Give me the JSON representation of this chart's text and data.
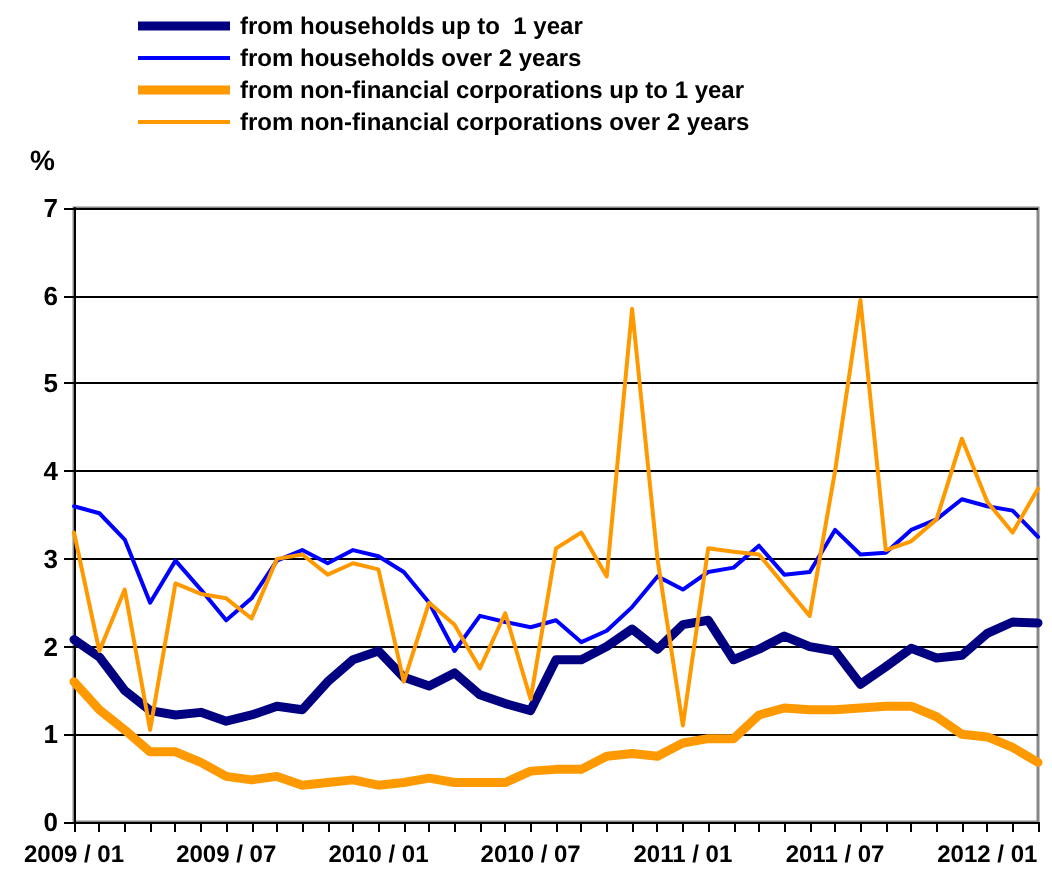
{
  "chart_data": {
    "type": "line",
    "ylabel": "%",
    "categories": [
      "2009 / 01",
      null,
      null,
      null,
      null,
      null,
      "2009 / 07",
      null,
      null,
      null,
      null,
      null,
      "2010 / 01",
      null,
      null,
      null,
      null,
      null,
      "2010 / 07",
      null,
      null,
      null,
      null,
      null,
      "2011 / 01",
      null,
      null,
      null,
      null,
      null,
      "2011 / 07",
      null,
      null,
      null,
      null,
      null,
      "2012 / 01",
      null,
      null
    ],
    "series": [
      {
        "name": "from households up to  1 year",
        "color": "#000080",
        "values": [
          2.08,
          1.88,
          1.5,
          1.27,
          1.22,
          1.25,
          1.15,
          1.22,
          1.32,
          1.28,
          1.6,
          1.85,
          1.95,
          1.65,
          1.55,
          1.7,
          1.45,
          1.35,
          1.27,
          1.85,
          1.85,
          2.0,
          2.2,
          1.97,
          2.25,
          2.3,
          1.85,
          1.97,
          2.12,
          2.0,
          1.95,
          1.57,
          1.77,
          1.98,
          1.87,
          1.9,
          2.15,
          2.28,
          2.27
        ]
      },
      {
        "name": "from households over 2 years",
        "color": "#0000ff",
        "values": [
          3.6,
          3.52,
          3.22,
          2.5,
          2.98,
          2.65,
          2.3,
          2.55,
          2.98,
          3.1,
          2.95,
          3.1,
          3.03,
          2.85,
          2.5,
          1.95,
          2.35,
          2.28,
          2.22,
          2.3,
          2.05,
          2.18,
          2.45,
          2.8,
          2.65,
          2.85,
          2.9,
          3.15,
          2.82,
          2.85,
          3.33,
          3.05,
          3.07,
          3.33,
          3.45,
          3.68,
          3.6,
          3.55,
          3.25
        ]
      },
      {
        "name": "from non-financial corporations up to 1 year",
        "color": "#ff9900",
        "values": [
          1.6,
          1.28,
          1.05,
          0.8,
          0.8,
          0.68,
          0.52,
          0.48,
          0.52,
          0.42,
          0.45,
          0.48,
          0.42,
          0.45,
          0.5,
          0.45,
          0.45,
          0.45,
          0.58,
          0.6,
          0.6,
          0.75,
          0.78,
          0.75,
          0.9,
          0.95,
          0.95,
          1.22,
          1.3,
          1.28,
          1.28,
          1.3,
          1.32,
          1.32,
          1.2,
          1.0,
          0.97,
          0.85,
          0.68
        ]
      },
      {
        "name": "from non-financial corporations over 2 years",
        "color": "#ff9900",
        "values": [
          3.3,
          1.95,
          2.65,
          1.05,
          2.72,
          2.6,
          2.55,
          2.32,
          3.0,
          3.05,
          2.82,
          2.95,
          2.88,
          1.6,
          2.5,
          2.25,
          1.75,
          2.38,
          1.4,
          3.12,
          3.3,
          2.8,
          5.85,
          3.0,
          1.1,
          3.12,
          3.08,
          3.05,
          2.7,
          2.35,
          4.0,
          5.95,
          3.1,
          3.2,
          3.45,
          4.37,
          3.65,
          3.3,
          3.8
        ]
      }
    ],
    "ylim": [
      0,
      7
    ],
    "yticks": [
      0,
      1,
      2,
      3,
      4,
      5,
      6,
      7
    ],
    "grid": "y",
    "legend": "top left",
    "marker": "none",
    "line_style": "solid"
  }
}
